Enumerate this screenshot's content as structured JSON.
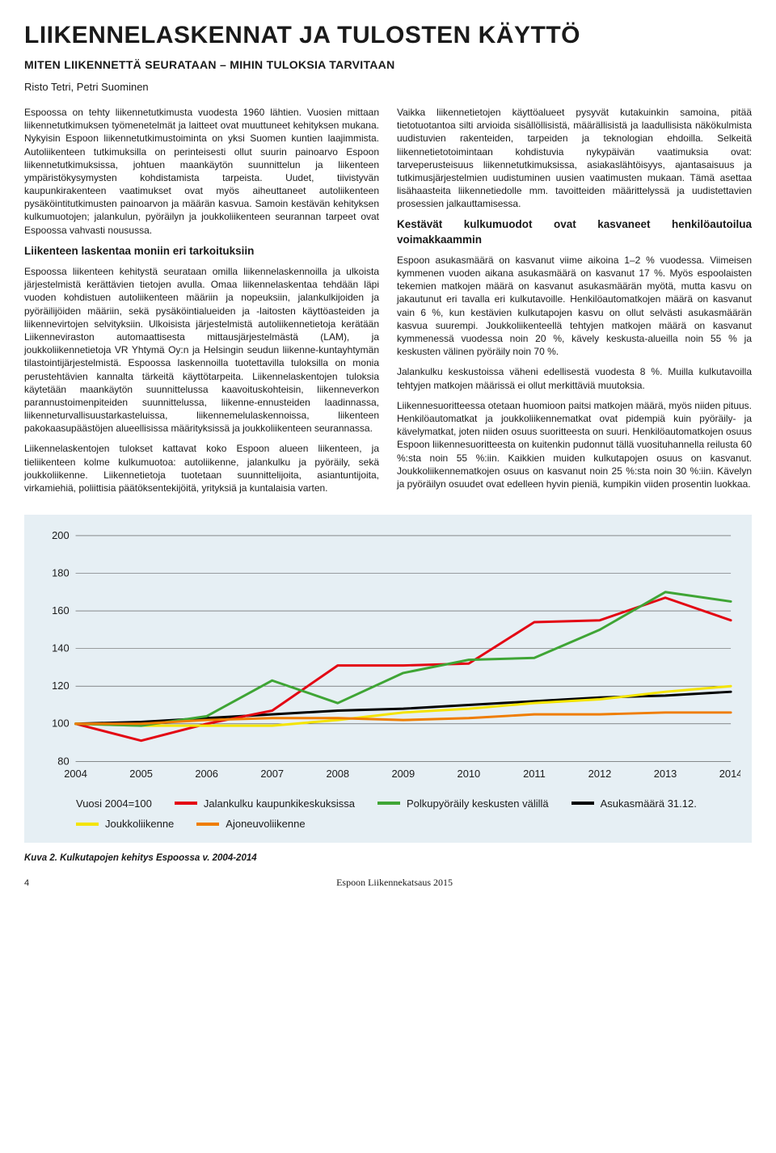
{
  "title": "LIIKENNELASKENNAT JA TULOSTEN KÄYTTÖ",
  "subtitle": "MITEN LIIKENNETTÄ SEURATAAN – MIHIN TULOKSIA TARVITAAN",
  "authors": "Risto Tetri, Petri Suominen",
  "paragraphs": {
    "p1": "Espoossa on tehty liikennetutkimusta vuodesta 1960 lähtien. Vuosien mittaan liikennetutkimuksen työmenetelmät ja laitteet ovat muuttuneet kehityksen mukana. Nykyisin Espoon liikennetutkimustoiminta on yksi Suomen kuntien laajimmista. Autoliikenteen tutkimuksilla on perinteisesti ollut suurin painoarvo Espoon liikennetutkimuksissa, johtuen maankäytön suunnittelun ja liikenteen ympäristökysymysten kohdistamista tarpeista. Uudet, tiivistyvän kaupunkirakenteen vaatimukset ovat myös aiheuttaneet autoliikenteen pysäköintitutkimusten painoarvon ja määrän kasvua. Samoin kestävän kehityksen kulkumuotojen; jalankulun, pyöräilyn ja joukkoliikenteen seurannan tarpeet ovat Espoossa vahvasti nousussa.",
    "h1": "Liikenteen laskentaa moniin eri tarkoituksiin",
    "p2": "Espoossa liikenteen kehitystä seurataan omilla liikennelaskennoilla ja ulkoista järjestelmistä kerättävien tietojen avulla. Omaa liikennelaskentaa tehdään läpi vuoden kohdistuen autoliikenteen määriin ja nopeuksiin, jalankulkijoiden ja pyöräilijöiden määriin, sekä pysäköintialueiden ja -laitosten käyttöasteiden ja liikennevirtojen selvityksiin. Ulkoisista järjestelmistä autoliikennetietoja kerätään Liikenneviraston automaattisesta mittausjärjestelmästä (LAM), ja joukkoliikennetietoja VR Yhtymä Oy:n ja Helsingin seudun liikenne-kuntayhtymän tilastointijärjestelmistä. Espoossa laskennoilla tuotettavilla tuloksilla on monia perustehtävien kannalta tärkeitä käyttötarpeita. Liikennelaskentojen tuloksia käytetään maankäytön suunnittelussa kaavoituskohteisin, liikenneverkon parannustoimenpiteiden suunnittelussa, liikenne-ennusteiden laadinnassa, liikenneturvallisuustarkasteluissa, liikennemelulaskennoissa, liikenteen pakokaasupäästöjen alueellisissa määrityksissä ja joukkoliikenteen seurannassa.",
    "p3": "Liikennelaskentojen tulokset kattavat koko Espoon alueen liikenteen, ja tieliikenteen kolme kulkumuotoa: autoliikenne, jalankulku ja pyöräily, sekä joukkoliikenne. Liikennetietoja tuotetaan suunnittelijoita, asiantuntijoita, virkamiehiä, poliittisia päätöksentekijöitä, yrityksiä ja kuntalaisia varten.",
    "p4": "Vaikka liikennetietojen käyttöalueet pysyvät kutakuinkin samoina, pitää tietotuotantoa silti arvioida sisällöllisistä, määrällisistä ja laadullisista näkökulmista uudistuvien rakenteiden, tarpeiden ja teknologian ehdoilla. Selkeitä liikennetietotoimintaan kohdistuvia nykypäivän vaatimuksia ovat: tarveperusteisuus liikennetutkimuksissa, asiakaslähtöisyys, ajantasaisuus ja tutkimusjärjestelmien uudistuminen uusien vaatimusten mukaan. Tämä asettaa lisähaasteita liikennetiedolle mm. tavoitteiden määrittelyssä ja uudistettavien prosessien jalkauttamisessa.",
    "h2": "Kestävät kulkumuodot ovat kasvaneet henkilöautoilua voimakkaammin",
    "p5": "Espoon asukasmäärä on kasvanut viime aikoina 1–2 % vuodessa. Viimeisen kymmenen vuoden aikana asukasmäärä on kasvanut 17 %. Myös espoolaisten tekemien matkojen määrä on kasvanut asukasmäärän myötä, mutta kasvu on jakautunut eri tavalla eri kulkutavoille. Henkilöautomatkojen määrä on kasvanut vain 6 %, kun kestävien kulkutapojen kasvu on ollut selvästi asukasmäärän kasvua suurempi. Joukkoliikenteellä tehtyjen matkojen määrä on kasvanut kymmenessä vuodessa noin 20 %, kävely keskusta-alueilla noin 55 % ja keskusten välinen pyöräily noin 70 %.",
    "p6": "Jalankulku keskustoissa väheni edellisestä vuodesta 8 %. Muilla kulkutavoilla tehtyjen matkojen määrissä ei ollut merkittäviä muutoksia.",
    "p7": "Liikennesuoritteessa otetaan huomioon paitsi matkojen määrä, myös niiden pituus. Henkilöautomatkat ja joukkoliikennematkat ovat pidempiä kuin pyöräily- ja kävelymatkat, joten niiden osuus suoritteesta on suuri. Henkilöautomatkojen osuus Espoon liikennesuoritteesta on kuitenkin pudonnut tällä vuosituhannella reilusta 60 %:sta noin 55 %:iin. Kaikkien muiden kulkutapojen osuus on kasvanut. Joukkoliikennematkojen osuus on kasvanut noin 25 %:sta noin 30 %:iin. Kävelyn ja pyöräilyn osuudet ovat edelleen hyvin pieniä, kumpikin viiden prosentin luokkaa."
  },
  "chart": {
    "type": "line",
    "background_color": "#e6eff4",
    "grid_color": "#4a4a4a",
    "axis_color": "#1a1a1a",
    "axis_fontsize": 13,
    "line_width": 3,
    "xlim": [
      2004,
      2014
    ],
    "ylim": [
      80,
      200
    ],
    "xticks": [
      2004,
      2005,
      2006,
      2007,
      2008,
      2009,
      2010,
      2011,
      2012,
      2013,
      2014
    ],
    "yticks": [
      80,
      100,
      120,
      140,
      160,
      180,
      200
    ],
    "legend_header": "Vuosi 2004=100",
    "series": [
      {
        "label": "Asukasmäärä 31.12.",
        "color": "#000000",
        "values": [
          100,
          101,
          103,
          105,
          107,
          108,
          110,
          112,
          114,
          115,
          117
        ]
      },
      {
        "label": "Jalankulku kaupunkikeskuksissa",
        "color": "#e30613",
        "values": [
          100,
          91,
          100,
          107,
          131,
          131,
          132,
          154,
          155,
          167,
          155
        ]
      },
      {
        "label": "Joukkoliikenne",
        "color": "#f4e400",
        "values": [
          100,
          99,
          99,
          99,
          102,
          106,
          108,
          111,
          113,
          117,
          120
        ]
      },
      {
        "label": "Polkupyöräily keskusten välillä",
        "color": "#3fa535",
        "values": [
          100,
          99,
          104,
          123,
          111,
          127,
          134,
          135,
          150,
          170,
          165
        ]
      },
      {
        "label": "Ajoneuvoliikenne",
        "color": "#ef7d00",
        "values": [
          100,
          100,
          102,
          103,
          103,
          102,
          103,
          105,
          105,
          106,
          106
        ]
      }
    ]
  },
  "caption": "Kuva 2. Kulkutapojen kehitys Espoossa v. 2004-2014",
  "page_number": "4",
  "footer_title": "Espoon Liikennekatsaus 2015"
}
